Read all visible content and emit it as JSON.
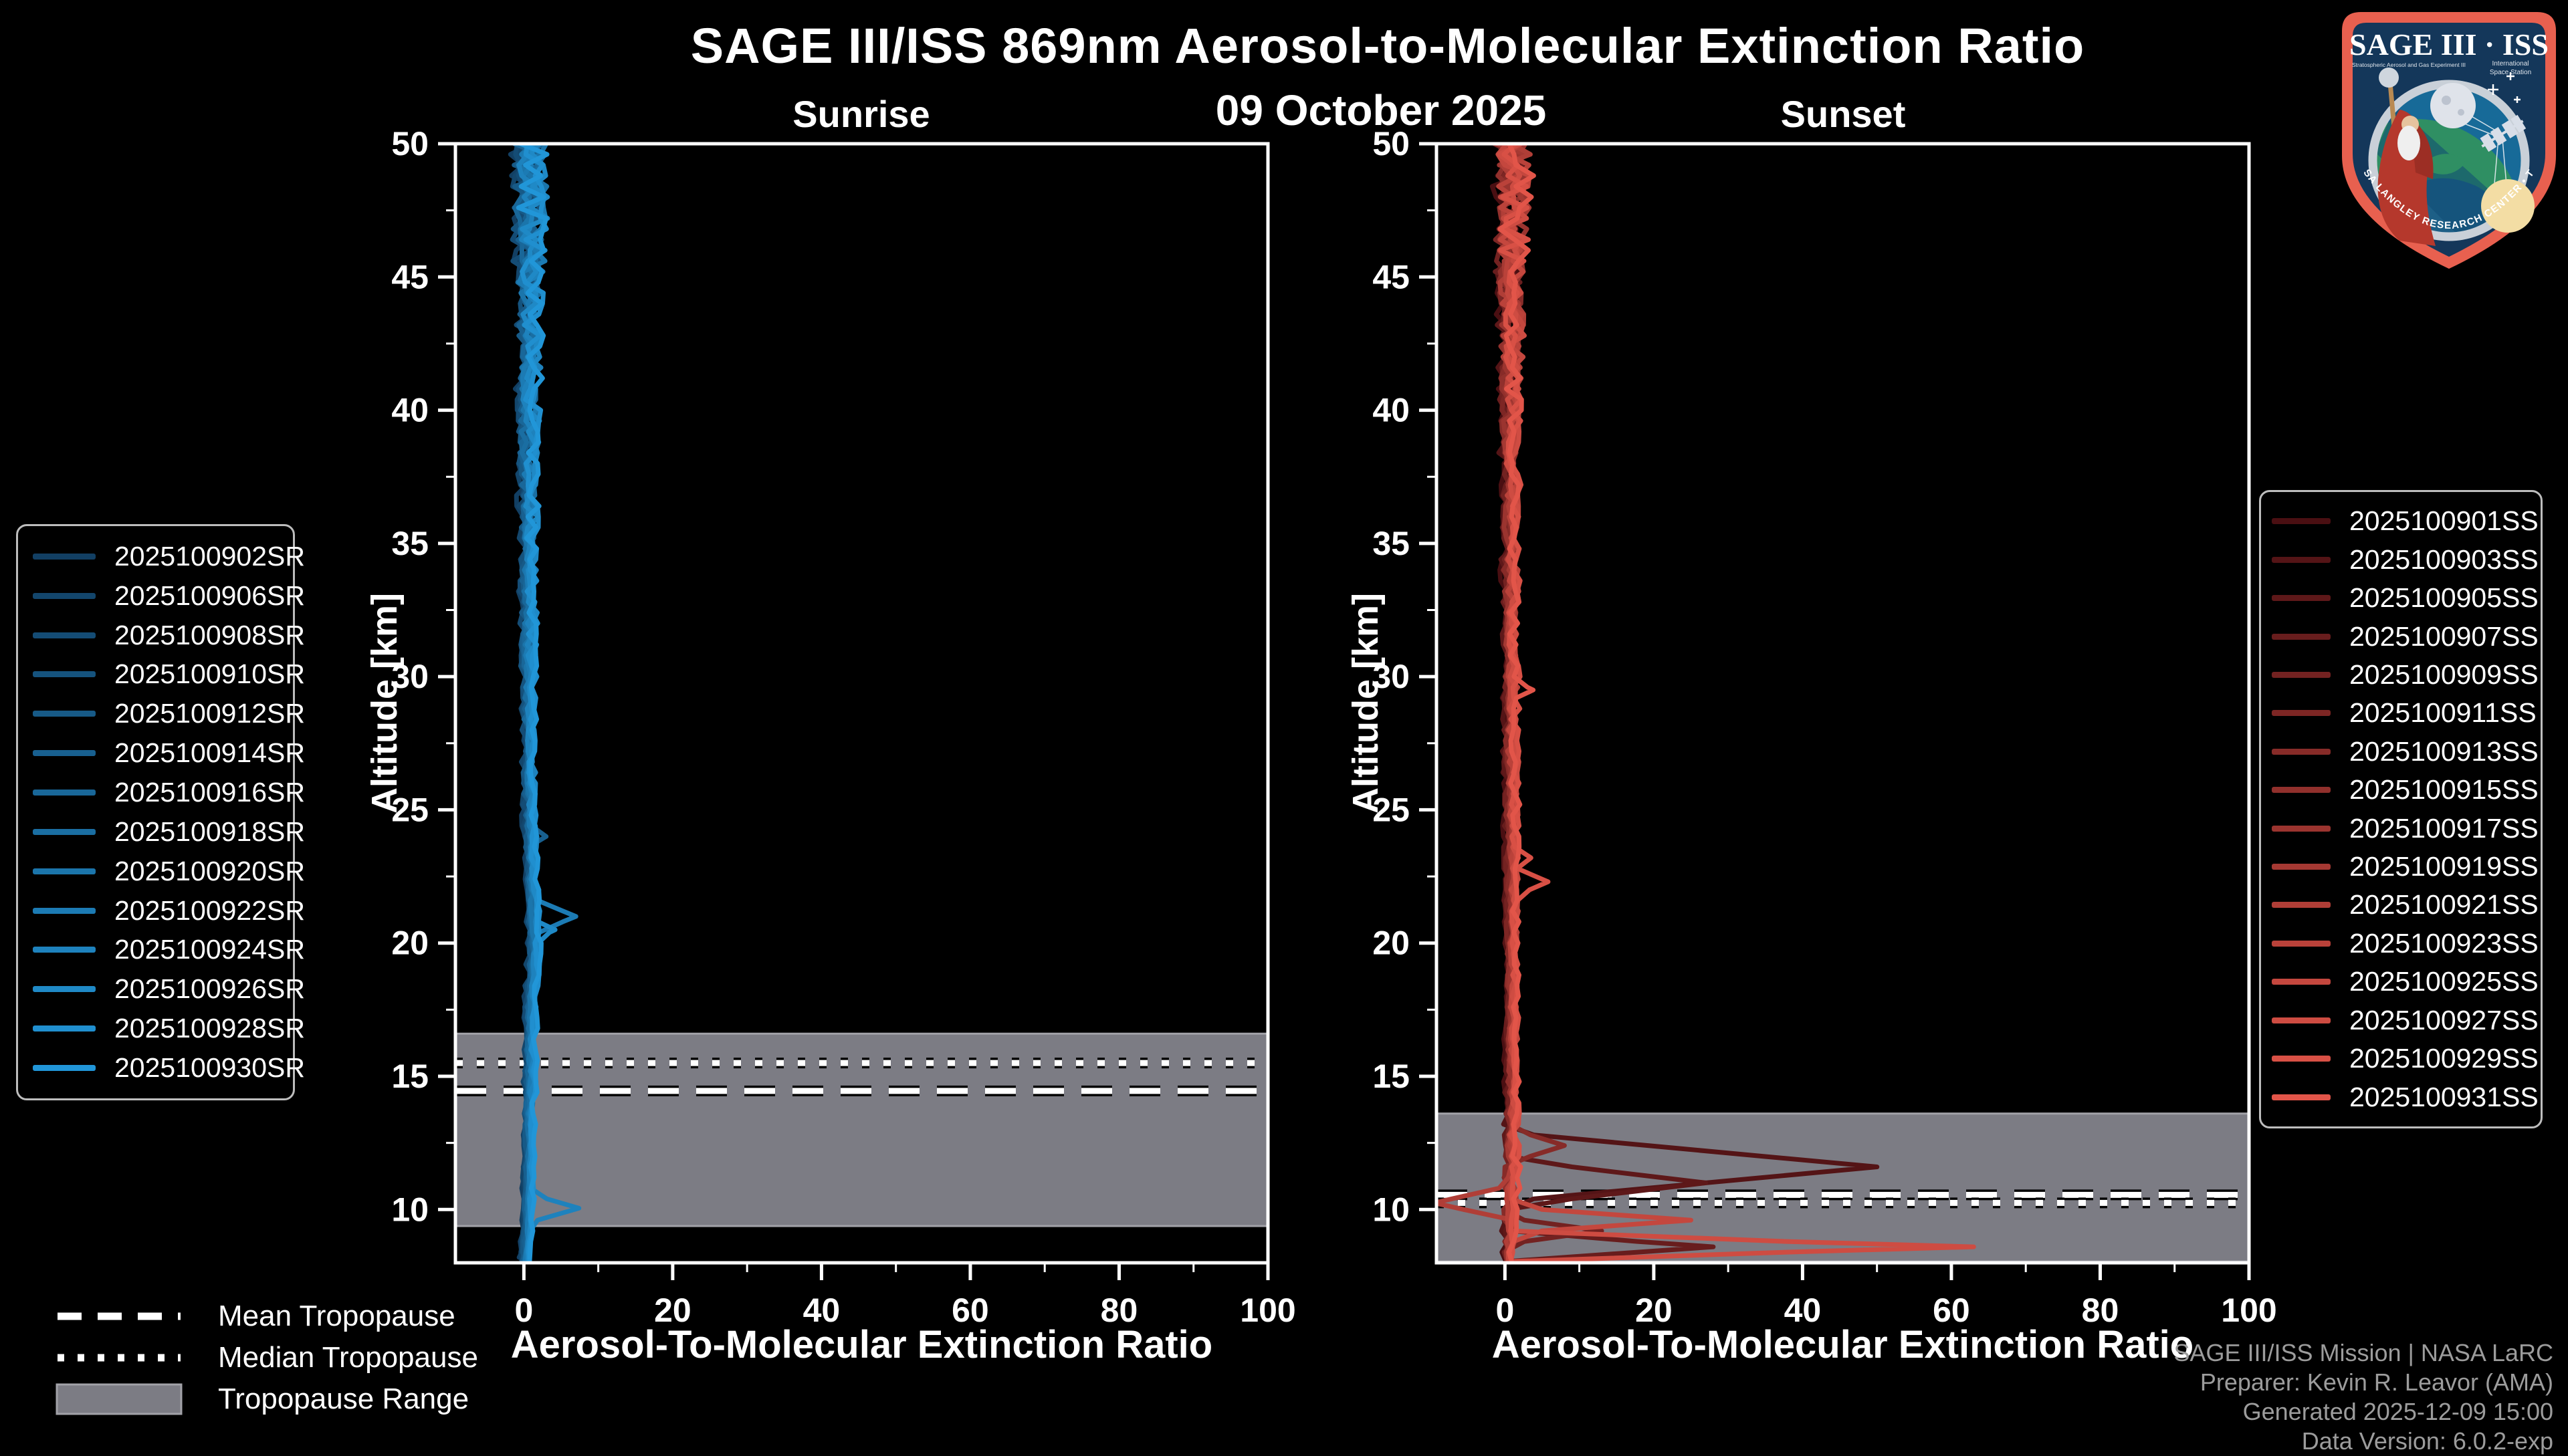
{
  "header": {
    "title": "SAGE III/ISS 869nm Aerosol-to-Molecular Extinction Ratio",
    "date": "09 October 2025"
  },
  "footer": {
    "lines": [
      "SAGE III/ISS Mission | NASA LaRC",
      "Preparer: Kevin R. Leavor (AMA)",
      "Generated 2025-12-09 15:00",
      "Data Version: 6.0.2-exp"
    ],
    "color": "#9c9c9c"
  },
  "trop_legend": {
    "items": [
      {
        "label": "Mean Tropopause",
        "style": "dashed"
      },
      {
        "label": "Median Tropopause",
        "style": "dotted"
      },
      {
        "label": "Tropopause Range",
        "style": "band"
      }
    ]
  },
  "logo": {
    "title": "SAGE III · ISS",
    "subtitle_left": "Stratospheric Aerosol and Gas Experiment III",
    "iss_line1": "International",
    "iss_line2": "Space Station",
    "arc_text": "BALL • NASA LANGLEY RESEARCH CENTER • TAS-I • ESA",
    "border_color": "#e8604f",
    "field_color": "#14375a"
  },
  "chart_data": [
    {
      "type": "line",
      "title": "Sunrise",
      "xlabel": "Aerosol-To-Molecular Extinction Ratio",
      "ylabel": "Altitude [km]",
      "xlim": [
        -9.2,
        100
      ],
      "ylim": [
        8,
        50
      ],
      "xticks": [
        0,
        20,
        40,
        60,
        80,
        100
      ],
      "yticks": [
        10,
        15,
        20,
        25,
        30,
        35,
        40,
        45,
        50
      ],
      "x_minor_step": 10,
      "y_minor_step": 2.5,
      "grid": false,
      "legend_position": "left",
      "tropopause": {
        "mean": 14.45,
        "median": 15.5,
        "range": [
          9.38,
          16.6
        ],
        "band_color": "#7c7c84",
        "band_edge": "#a2a2a8"
      },
      "base": [
        [
          50,
          0.8
        ],
        [
          46,
          0.8
        ],
        [
          42,
          0.7
        ],
        [
          38,
          0.6
        ],
        [
          34,
          0.6
        ],
        [
          30,
          0.6
        ],
        [
          26,
          0.7
        ],
        [
          23,
          0.9
        ],
        [
          21.5,
          1.2
        ],
        [
          20,
          1.4
        ],
        [
          18.5,
          1.1
        ],
        [
          17,
          0.9
        ],
        [
          15,
          0.8
        ],
        [
          13,
          0.7
        ],
        [
          11,
          0.6
        ],
        [
          9.5,
          0.5
        ],
        [
          8.6,
          0.3
        ],
        [
          8.1,
          0.1
        ]
      ],
      "noise": [
        [
          50,
          2.1
        ],
        [
          47,
          2.2
        ],
        [
          45,
          1.7
        ],
        [
          42,
          1.3
        ],
        [
          38,
          1.0
        ],
        [
          33,
          0.8
        ],
        [
          28,
          0.6
        ],
        [
          24,
          0.5
        ],
        [
          20,
          0.5
        ],
        [
          16,
          0.4
        ],
        [
          12,
          0.35
        ],
        [
          9.5,
          0.3
        ],
        [
          8.1,
          0.15
        ]
      ],
      "series": [
        {
          "name": "2025100902SR",
          "color": "#123F63",
          "seed": 3,
          "bottom": 8.2,
          "spikes": []
        },
        {
          "name": "2025100906SR",
          "color": "#13466C",
          "seed": 17,
          "bottom": 8.1,
          "spikes": []
        },
        {
          "name": "2025100908SR",
          "color": "#144C75",
          "seed": 29,
          "bottom": 8.25,
          "spikes": []
        },
        {
          "name": "2025100910SR",
          "color": "#15537E",
          "seed": 41,
          "bottom": 8.1,
          "spikes": []
        },
        {
          "name": "2025100912SR",
          "color": "#175A87",
          "seed": 53,
          "bottom": 8.2,
          "spikes": []
        },
        {
          "name": "2025100914SR",
          "color": "#186090",
          "seed": 67,
          "bottom": 8.1,
          "spikes": [
            [
              24,
              3,
              0.5
            ]
          ]
        },
        {
          "name": "2025100916SR",
          "color": "#196799",
          "seed": 79,
          "bottom": 8.15,
          "spikes": []
        },
        {
          "name": "2025100918SR",
          "color": "#1A6EA2",
          "seed": 97,
          "bottom": 8.1,
          "spikes": []
        },
        {
          "name": "2025100920SR",
          "color": "#1B75AB",
          "seed": 111,
          "bottom": 8.2,
          "spikes": []
        },
        {
          "name": "2025100922SR",
          "color": "#1C7BB4",
          "seed": 123,
          "bottom": 8.1,
          "spikes": [
            [
              21,
              7,
              0.8
            ]
          ]
        },
        {
          "name": "2025100924SR",
          "color": "#1E82BD",
          "seed": 137,
          "bottom": 8.05,
          "spikes": [
            [
              10.05,
              7.4,
              0.6
            ]
          ]
        },
        {
          "name": "2025100926SR",
          "color": "#1F89C6",
          "seed": 149,
          "bottom": 8.1,
          "spikes": [
            [
              20.5,
              4.2,
              0.55
            ]
          ]
        },
        {
          "name": "2025100928SR",
          "color": "#208FCF",
          "seed": 161,
          "bottom": 8.15,
          "spikes": []
        },
        {
          "name": "2025100930SR",
          "color": "#2196D8",
          "seed": 173,
          "bottom": 8.05,
          "spikes": []
        }
      ]
    },
    {
      "type": "line",
      "title": "Sunset",
      "xlabel": "Aerosol-To-Molecular Extinction Ratio",
      "ylabel": "Altitude [km]",
      "xlim": [
        -9.2,
        100
      ],
      "ylim": [
        8,
        50
      ],
      "xticks": [
        0,
        20,
        40,
        60,
        80,
        100
      ],
      "yticks": [
        10,
        15,
        20,
        25,
        30,
        35,
        40,
        45,
        50
      ],
      "x_minor_step": 10,
      "y_minor_step": 2.5,
      "grid": false,
      "legend_position": "right",
      "tropopause": {
        "mean": 10.55,
        "median": 10.25,
        "range": [
          8.05,
          13.6
        ],
        "band_color": "#7c7c84",
        "band_edge": "#a2a2a8"
      },
      "base": [
        [
          50,
          1.0
        ],
        [
          46,
          0.9
        ],
        [
          42,
          0.8
        ],
        [
          38,
          0.7
        ],
        [
          34,
          0.7
        ],
        [
          30,
          0.8
        ],
        [
          26,
          0.8
        ],
        [
          22,
          0.9
        ],
        [
          18,
          0.9
        ],
        [
          15,
          0.9
        ],
        [
          13,
          0.9
        ],
        [
          11.5,
          0.8
        ],
        [
          10,
          0.7
        ],
        [
          9,
          0.6
        ],
        [
          8.1,
          0.4
        ]
      ],
      "noise": [
        [
          50,
          2.3
        ],
        [
          47,
          2.3
        ],
        [
          45,
          1.8
        ],
        [
          42,
          1.3
        ],
        [
          38,
          1.0
        ],
        [
          33,
          0.8
        ],
        [
          28,
          0.7
        ],
        [
          23,
          0.6
        ],
        [
          19,
          0.5
        ],
        [
          15,
          0.5
        ],
        [
          12.5,
          0.7
        ],
        [
          10.5,
          0.8
        ],
        [
          9,
          0.7
        ],
        [
          8.1,
          0.5
        ]
      ],
      "series": [
        {
          "name": "2025100901SS",
          "color": "#4A0F12",
          "seed": 201,
          "bottom": 8.1,
          "spikes": []
        },
        {
          "name": "2025100903SS",
          "color": "#541416",
          "seed": 211,
          "bottom": 8.05,
          "spikes": [
            [
              11.6,
              50,
              1.3
            ]
          ]
        },
        {
          "name": "2025100905SS",
          "color": "#5E1819",
          "seed": 223,
          "bottom": 8.1,
          "spikes": [
            [
              11.0,
              27,
              0.9
            ]
          ]
        },
        {
          "name": "2025100907SS",
          "color": "#681D1D",
          "seed": 235,
          "bottom": 8.05,
          "spikes": [
            [
              8.6,
              28,
              0.55
            ]
          ]
        },
        {
          "name": "2025100909SS",
          "color": "#732221",
          "seed": 247,
          "bottom": 8.1,
          "spikes": [
            [
              9.2,
              13,
              0.5
            ]
          ]
        },
        {
          "name": "2025100911SS",
          "color": "#7D2624",
          "seed": 259,
          "bottom": 8.15,
          "spikes": []
        },
        {
          "name": "2025100913SS",
          "color": "#872B28",
          "seed": 271,
          "bottom": 8.1,
          "spikes": [
            [
              12.4,
              8,
              0.7
            ]
          ]
        },
        {
          "name": "2025100915SS",
          "color": "#91302C",
          "seed": 283,
          "bottom": 8.2,
          "spikes": []
        },
        {
          "name": "2025100917SS",
          "color": "#9B342F",
          "seed": 295,
          "bottom": 8.1,
          "spikes": []
        },
        {
          "name": "2025100919SS",
          "color": "#A53933",
          "seed": 307,
          "bottom": 8.15,
          "spikes": []
        },
        {
          "name": "2025100921SS",
          "color": "#B03E37",
          "seed": 319,
          "bottom": 8.1,
          "spikes": [
            [
              10.25,
              -9.5,
              0.6
            ]
          ]
        },
        {
          "name": "2025100923SS",
          "color": "#BA423A",
          "seed": 331,
          "bottom": 8.2,
          "spikes": []
        },
        {
          "name": "2025100925SS",
          "color": "#C4473E",
          "seed": 343,
          "bottom": 8.1,
          "spikes": [
            [
              9.6,
              25,
              0.5
            ]
          ]
        },
        {
          "name": "2025100927SS",
          "color": "#CE4C42",
          "seed": 355,
          "bottom": 8.05,
          "spikes": [
            [
              8.6,
              63,
              0.5
            ]
          ]
        },
        {
          "name": "2025100929SS",
          "color": "#D85045",
          "seed": 367,
          "bottom": 8.1,
          "spikes": [
            [
              22.3,
              5.8,
              0.7
            ],
            [
              23.2,
              3.5,
              0.45
            ]
          ]
        },
        {
          "name": "2025100931SS",
          "color": "#E25549",
          "seed": 379,
          "bottom": 8.05,
          "spikes": [
            [
              29.5,
              3.8,
              0.5
            ]
          ]
        }
      ]
    }
  ]
}
